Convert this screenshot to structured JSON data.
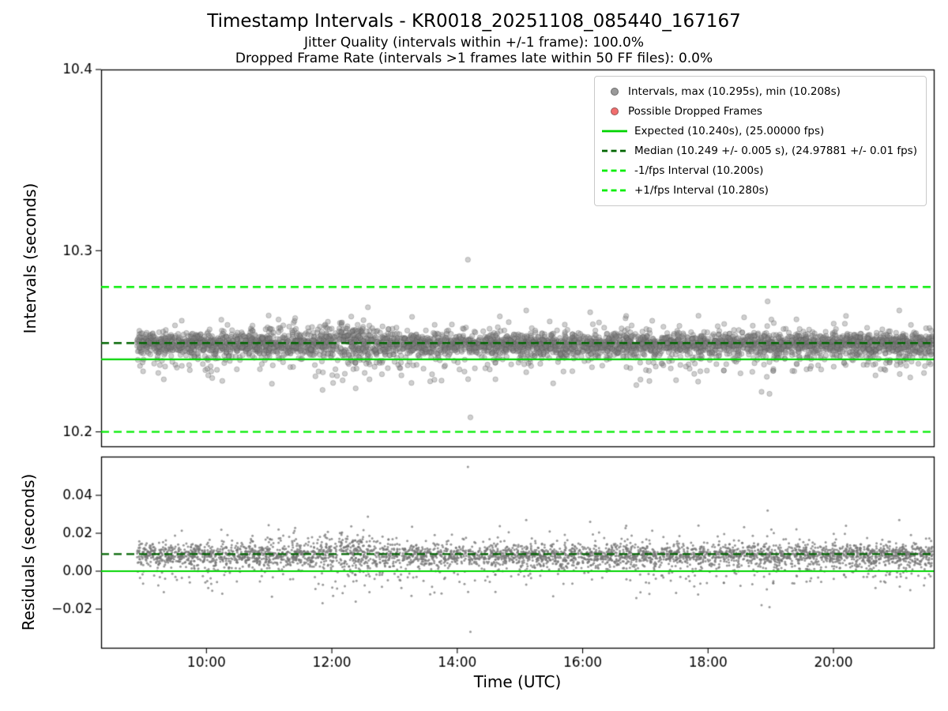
{
  "chart_data": {
    "type": "scatter",
    "title": "Timestamp Intervals - KR0018_20251108_085440_167167",
    "subtitles": [
      "Jitter Quality (intervals within +/-1 frame): 100.0%",
      "Dropped Frame Rate (intervals >1 frames late within 50 FF files): 0.0%"
    ],
    "xlabel": "Time (UTC)",
    "xlim_hours": [
      8.32,
      21.6
    ],
    "xticks": [
      {
        "hour": 10,
        "label": "10:00"
      },
      {
        "hour": 12,
        "label": "12:00"
      },
      {
        "hour": 14,
        "label": "14:00"
      },
      {
        "hour": 16,
        "label": "16:00"
      },
      {
        "hour": 18,
        "label": "18:00"
      },
      {
        "hour": 20,
        "label": "20:00"
      }
    ],
    "stats": {
      "jitter_quality_pct": 100.0,
      "dropped_frame_rate_pct": 0.0,
      "max_interval_s": 10.295,
      "min_interval_s": 10.208,
      "expected_interval_s": 10.24,
      "expected_fps": 25.0,
      "median_interval_s": 10.249,
      "median_interval_err_s": 0.005,
      "median_fps": 24.97881,
      "median_fps_err": 0.01,
      "minus_1fps_interval_s": 10.2,
      "plus_1fps_interval_s": 10.28
    },
    "top_panel": {
      "ylabel": "Intervals (seconds)",
      "ylim": [
        10.192,
        10.4
      ],
      "yticks": [
        {
          "value": 10.2,
          "label": "10.2"
        },
        {
          "value": 10.3,
          "label": "10.3"
        },
        {
          "value": 10.4,
          "label": "10.4"
        }
      ],
      "scatter": {
        "n_points": 4200,
        "x_start_hour": 8.88,
        "x_end_hour": 21.58,
        "mix": [
          {
            "weight": 0.82,
            "mean": 10.2485,
            "std": 0.003
          },
          {
            "weight": 0.18,
            "mean": 10.245,
            "std": 0.0075
          }
        ],
        "noise_bump": {
          "center_hour": 12.2,
          "width": 0.18,
          "gain": 1.1
        },
        "y_clip": [
          10.221,
          10.2735
        ],
        "color": "#808080",
        "alpha": 0.38,
        "marker_radius_px": 3.2
      },
      "outliers": [
        [
          14.17,
          10.295
        ],
        [
          14.21,
          10.208
        ],
        [
          12.02,
          10.227
        ],
        [
          12.38,
          10.224
        ],
        [
          12.6,
          10.229
        ],
        [
          13.27,
          10.227
        ],
        [
          9.32,
          10.229
        ],
        [
          15.1,
          10.267
        ],
        [
          16.12,
          10.266
        ],
        [
          18.95,
          10.272
        ],
        [
          18.98,
          10.221
        ],
        [
          20.2,
          10.264
        ],
        [
          21.05,
          10.267
        ],
        [
          11.15,
          10.262
        ]
      ],
      "lines": [
        {
          "name": "expected",
          "value": 10.24,
          "style": "solid",
          "color": "#00d400",
          "width": 2.4
        },
        {
          "name": "median",
          "value": 10.249,
          "style": "dashed",
          "color": "#006400",
          "width": 2.4
        },
        {
          "name": "minus-1fps",
          "value": 10.2,
          "style": "dashed",
          "color": "#00ed00",
          "width": 2.4
        },
        {
          "name": "plus-1fps",
          "value": 10.28,
          "style": "dashed",
          "color": "#00ed00",
          "width": 2.4
        }
      ]
    },
    "bottom_panel": {
      "ylabel": "Residuals (seconds)",
      "ylim": [
        -0.0404,
        0.0604
      ],
      "yticks": [
        {
          "value": -0.02,
          "label": "−0.02"
        },
        {
          "value": 0.0,
          "label": "0.00"
        },
        {
          "value": 0.02,
          "label": "0.02"
        },
        {
          "value": 0.04,
          "label": "0.04"
        }
      ],
      "residual_of": "expected",
      "marker_radius_px": 1.5,
      "alpha": 0.75,
      "lines": [
        {
          "name": "zero",
          "value": 0.0,
          "style": "solid",
          "color": "#00d400",
          "width": 2.2
        },
        {
          "name": "median-residual",
          "value": 0.009,
          "style": "dashed",
          "color": "#006400",
          "width": 2.2
        }
      ]
    },
    "legend": {
      "entries": [
        {
          "marker": "dot",
          "color": "#9a9a9a",
          "label": "Intervals, max (10.295s), min (10.208s)"
        },
        {
          "marker": "dot",
          "color": "#f26d6d",
          "label": "Possible Dropped Frames"
        },
        {
          "marker": "solid-line",
          "color": "#00d400",
          "label": "Expected (10.240s), (25.00000 fps)"
        },
        {
          "marker": "dashed-line",
          "color": "#006400",
          "label": "Median (10.249 +/- 0.005 s), (24.97881 +/- 0.01 fps)"
        },
        {
          "marker": "dashed-line",
          "color": "#00ed00",
          "label": "-1/fps Interval (10.200s)"
        },
        {
          "marker": "dashed-line",
          "color": "#00ed00",
          "label": "+1/fps Interval (10.280s)"
        }
      ]
    }
  }
}
